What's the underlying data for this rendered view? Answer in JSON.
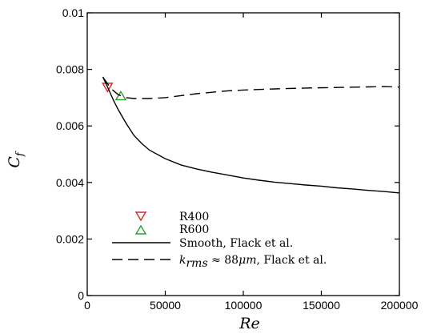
{
  "chart_data": {
    "type": "line",
    "title": "",
    "xlabel": "Re",
    "ylabel_main": "C",
    "ylabel_sub": "f",
    "xlim": [
      0,
      200000
    ],
    "ylim": [
      0,
      0.01
    ],
    "x_ticks": [
      0,
      50000,
      100000,
      150000,
      200000
    ],
    "x_tick_labels": [
      "0",
      "50000",
      "100000",
      "150000",
      "200000"
    ],
    "y_ticks": [
      0,
      0.002,
      0.004,
      0.006,
      0.008,
      0.01
    ],
    "y_tick_labels": [
      "0",
      "0.002",
      "0.004",
      "0.006",
      "0.008",
      "0.01"
    ],
    "grid": false,
    "legend_position": "bottom-left",
    "series": [
      {
        "name": "R400",
        "kind": "marker",
        "marker": "triangle-down",
        "color": "#d62728",
        "points": [
          {
            "x": 13000,
            "y": 0.00737
          }
        ]
      },
      {
        "name": "R600",
        "kind": "marker",
        "marker": "triangle-up",
        "color": "#2ca02c",
        "points": [
          {
            "x": 21500,
            "y": 0.00706
          }
        ]
      },
      {
        "name": "Smooth, Flack et al.",
        "kind": "line",
        "dash": "solid",
        "color": "#000000",
        "points": [
          {
            "x": 10000,
            "y": 0.00773
          },
          {
            "x": 13000,
            "y": 0.00738
          },
          {
            "x": 17000,
            "y": 0.00688
          },
          {
            "x": 20000,
            "y": 0.00656
          },
          {
            "x": 25000,
            "y": 0.00608
          },
          {
            "x": 30000,
            "y": 0.00566
          },
          {
            "x": 35000,
            "y": 0.00537
          },
          {
            "x": 40000,
            "y": 0.00514
          },
          {
            "x": 50000,
            "y": 0.00484
          },
          {
            "x": 60000,
            "y": 0.00462
          },
          {
            "x": 70000,
            "y": 0.00448
          },
          {
            "x": 80000,
            "y": 0.00436
          },
          {
            "x": 90000,
            "y": 0.00426
          },
          {
            "x": 100000,
            "y": 0.00416
          },
          {
            "x": 110000,
            "y": 0.00408
          },
          {
            "x": 120000,
            "y": 0.00401
          },
          {
            "x": 130000,
            "y": 0.00396
          },
          {
            "x": 140000,
            "y": 0.00391
          },
          {
            "x": 150000,
            "y": 0.00387
          },
          {
            "x": 160000,
            "y": 0.00381
          },
          {
            "x": 170000,
            "y": 0.00377
          },
          {
            "x": 180000,
            "y": 0.00372
          },
          {
            "x": 190000,
            "y": 0.00368
          },
          {
            "x": 200000,
            "y": 0.00363
          }
        ]
      },
      {
        "name": "k_rms ≈ 88μm, Flack et al.",
        "kind": "line",
        "dash": "dashed",
        "color": "#000000",
        "points": [
          {
            "x": 10000,
            "y": 0.00773
          },
          {
            "x": 15000,
            "y": 0.00733
          },
          {
            "x": 20000,
            "y": 0.0071
          },
          {
            "x": 25000,
            "y": 0.007
          },
          {
            "x": 30000,
            "y": 0.00697
          },
          {
            "x": 40000,
            "y": 0.00697
          },
          {
            "x": 50000,
            "y": 0.007
          },
          {
            "x": 60000,
            "y": 0.00707
          },
          {
            "x": 70000,
            "y": 0.00714
          },
          {
            "x": 80000,
            "y": 0.00719
          },
          {
            "x": 90000,
            "y": 0.00724
          },
          {
            "x": 100000,
            "y": 0.00727
          },
          {
            "x": 120000,
            "y": 0.00731
          },
          {
            "x": 140000,
            "y": 0.00734
          },
          {
            "x": 160000,
            "y": 0.00736
          },
          {
            "x": 180000,
            "y": 0.00738
          },
          {
            "x": 190000,
            "y": 0.00739
          },
          {
            "x": 200000,
            "y": 0.00737
          }
        ]
      }
    ],
    "legend": {
      "r400": "R400",
      "r600": "R600",
      "smooth": "Smooth, Flack et al.",
      "rough_k": "k",
      "rough_sub": "rms",
      "rough_rest": " ≈ 88",
      "rough_mu": "μm",
      "rough_tail": ", Flack et al."
    }
  }
}
